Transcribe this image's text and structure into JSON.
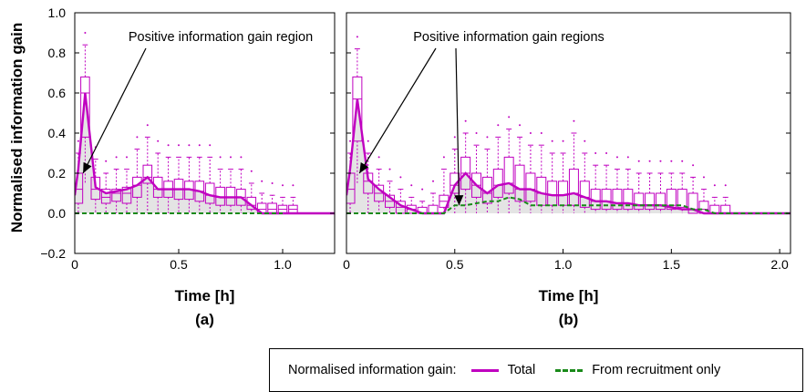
{
  "ylabel": "Normalised information gain",
  "legend": {
    "title": "Normalised information gain:",
    "items": [
      {
        "label": "Total",
        "color": "#c000c0",
        "style": "solid"
      },
      {
        "label": "From recruitment only",
        "color": "#1a8a1a",
        "style": "dashed"
      }
    ]
  },
  "chart_data": [
    {
      "type": "line",
      "panel_label": "(a)",
      "xlabel": "Time [h]",
      "ylabel": "Normalised information gain",
      "xlim": [
        0,
        1.25
      ],
      "ylim": [
        -0.2,
        1.0
      ],
      "xticks": [
        0,
        0.5,
        1.0
      ],
      "xtick_labels": [
        "0",
        "0.5",
        "1.0"
      ],
      "yticks": [
        -0.2,
        0,
        0.2,
        0.4,
        0.6,
        0.8,
        1.0
      ],
      "ytick_labels": [
        "−0.2",
        "0.0",
        "0.2",
        "0.4",
        "0.6",
        "0.8",
        "1.0"
      ],
      "annotations": [
        {
          "text": "Positive information gain region",
          "arrows_to": [
            [
              0.04,
              0.2
            ]
          ]
        }
      ],
      "series": [
        {
          "name": "Total",
          "color": "#c000c0",
          "x": [
            0,
            0.0167,
            0.05,
            0.1,
            0.15,
            0.2,
            0.25,
            0.3,
            0.35,
            0.4,
            0.45,
            0.5,
            0.55,
            0.6,
            0.65,
            0.7,
            0.75,
            0.8,
            0.85,
            0.9,
            1.25
          ],
          "values": [
            0.09,
            0.22,
            0.6,
            0.13,
            0.1,
            0.11,
            0.12,
            0.14,
            0.18,
            0.12,
            0.12,
            0.12,
            0.12,
            0.11,
            0.09,
            0.08,
            0.08,
            0.08,
            0.04,
            0.0,
            0.0
          ]
        },
        {
          "name": "From recruitment only",
          "color": "#1a8a1a",
          "x": [
            0,
            1.0
          ],
          "values": [
            0.0,
            0.0
          ]
        }
      ],
      "boxes": [
        {
          "x": 0.017,
          "q1": 0.05,
          "q3": 0.2,
          "med": 0.12,
          "wlo": 0.0,
          "whi": 0.3
        },
        {
          "x": 0.05,
          "q1": 0.38,
          "q3": 0.68,
          "med": 0.6,
          "wlo": 0.15,
          "whi": 0.84
        },
        {
          "x": 0.1,
          "q1": 0.07,
          "q3": 0.18,
          "med": 0.12,
          "wlo": 0.0,
          "whi": 0.27
        },
        {
          "x": 0.15,
          "q1": 0.05,
          "q3": 0.12,
          "med": 0.08,
          "wlo": 0.0,
          "whi": 0.2
        },
        {
          "x": 0.2,
          "q1": 0.06,
          "q3": 0.12,
          "med": 0.1,
          "wlo": 0.0,
          "whi": 0.22
        },
        {
          "x": 0.25,
          "q1": 0.05,
          "q3": 0.13,
          "med": 0.1,
          "wlo": 0.0,
          "whi": 0.22
        },
        {
          "x": 0.3,
          "q1": 0.08,
          "q3": 0.18,
          "med": 0.14,
          "wlo": 0.0,
          "whi": 0.32
        },
        {
          "x": 0.35,
          "q1": 0.15,
          "q3": 0.24,
          "med": 0.18,
          "wlo": 0.0,
          "whi": 0.38
        },
        {
          "x": 0.4,
          "q1": 0.08,
          "q3": 0.18,
          "med": 0.12,
          "wlo": 0.0,
          "whi": 0.3
        },
        {
          "x": 0.45,
          "q1": 0.08,
          "q3": 0.16,
          "med": 0.12,
          "wlo": 0.0,
          "whi": 0.28
        },
        {
          "x": 0.5,
          "q1": 0.07,
          "q3": 0.17,
          "med": 0.12,
          "wlo": 0.0,
          "whi": 0.28
        },
        {
          "x": 0.55,
          "q1": 0.07,
          "q3": 0.16,
          "med": 0.12,
          "wlo": 0.0,
          "whi": 0.28
        },
        {
          "x": 0.6,
          "q1": 0.06,
          "q3": 0.16,
          "med": 0.11,
          "wlo": 0.0,
          "whi": 0.28
        },
        {
          "x": 0.65,
          "q1": 0.05,
          "q3": 0.15,
          "med": 0.09,
          "wlo": 0.0,
          "whi": 0.28
        },
        {
          "x": 0.7,
          "q1": 0.04,
          "q3": 0.13,
          "med": 0.08,
          "wlo": 0.0,
          "whi": 0.22
        },
        {
          "x": 0.75,
          "q1": 0.04,
          "q3": 0.13,
          "med": 0.08,
          "wlo": 0.0,
          "whi": 0.22
        },
        {
          "x": 0.8,
          "q1": 0.04,
          "q3": 0.12,
          "med": 0.08,
          "wlo": 0.0,
          "whi": 0.22
        },
        {
          "x": 0.85,
          "q1": 0.02,
          "q3": 0.08,
          "med": 0.04,
          "wlo": 0.0,
          "whi": 0.15
        },
        {
          "x": 0.9,
          "q1": 0.0,
          "q3": 0.05,
          "med": 0.02,
          "wlo": 0.0,
          "whi": 0.1
        },
        {
          "x": 0.95,
          "q1": 0.0,
          "q3": 0.05,
          "med": 0.02,
          "wlo": 0.0,
          "whi": 0.09
        },
        {
          "x": 1.0,
          "q1": 0.0,
          "q3": 0.04,
          "med": 0.02,
          "wlo": 0.0,
          "whi": 0.08
        },
        {
          "x": 1.05,
          "q1": 0.0,
          "q3": 0.04,
          "med": 0.02,
          "wlo": 0.0,
          "whi": 0.08
        }
      ]
    },
    {
      "type": "line",
      "panel_label": "(b)",
      "xlabel": "Time [h]",
      "ylabel": "",
      "xlim": [
        0,
        2.05
      ],
      "ylim": [
        -0.2,
        1.0
      ],
      "xticks": [
        0,
        0.5,
        1.0,
        1.5,
        2.0
      ],
      "xtick_labels": [
        "0",
        "0.5",
        "1.0",
        "1.5",
        "2.0"
      ],
      "yticks": [
        -0.2,
        0,
        0.2,
        0.4,
        0.6,
        0.8,
        1.0
      ],
      "annotations": [
        {
          "text": "Positive information gain regions",
          "arrows_to": [
            [
              0.06,
              0.2
            ],
            [
              0.52,
              0.04
            ]
          ]
        }
      ],
      "series": [
        {
          "name": "Total",
          "color": "#c000c0",
          "x": [
            0,
            0.0167,
            0.05,
            0.1,
            0.15,
            0.2,
            0.25,
            0.3,
            0.35,
            0.4,
            0.45,
            0.5,
            0.55,
            0.6,
            0.65,
            0.7,
            0.75,
            0.8,
            0.85,
            0.9,
            0.95,
            1.0,
            1.05,
            1.1,
            1.15,
            1.2,
            1.25,
            1.3,
            1.35,
            1.4,
            1.45,
            1.5,
            1.55,
            1.6,
            1.65,
            1.7,
            2.05
          ],
          "values": [
            0.09,
            0.22,
            0.57,
            0.17,
            0.12,
            0.08,
            0.04,
            0.02,
            0.0,
            0.0,
            0.0,
            0.14,
            0.2,
            0.14,
            0.1,
            0.14,
            0.15,
            0.12,
            0.12,
            0.1,
            0.09,
            0.09,
            0.1,
            0.08,
            0.06,
            0.06,
            0.05,
            0.05,
            0.04,
            0.04,
            0.04,
            0.03,
            0.02,
            0.02,
            0.0,
            0.0,
            0.0
          ]
        },
        {
          "name": "From recruitment only",
          "color": "#1a8a1a",
          "x": [
            0,
            0.45,
            0.5,
            0.55,
            0.6,
            0.65,
            0.7,
            0.75,
            0.8,
            0.85,
            0.9,
            0.95,
            1.0,
            1.05,
            1.1,
            1.15,
            1.2,
            1.25,
            1.3,
            1.35,
            1.4,
            1.45,
            1.5,
            1.55,
            1.6,
            1.65,
            1.7,
            2.05
          ],
          "values": [
            0.0,
            0.0,
            0.04,
            0.04,
            0.05,
            0.06,
            0.06,
            0.08,
            0.07,
            0.04,
            0.04,
            0.04,
            0.04,
            0.04,
            0.04,
            0.04,
            0.04,
            0.04,
            0.04,
            0.04,
            0.04,
            0.04,
            0.04,
            0.04,
            0.02,
            0.02,
            0.0,
            0.0
          ]
        }
      ],
      "boxes": [
        {
          "x": 0.017,
          "q1": 0.05,
          "q3": 0.2,
          "med": 0.12,
          "wlo": 0.0,
          "whi": 0.3
        },
        {
          "x": 0.05,
          "q1": 0.36,
          "q3": 0.68,
          "med": 0.57,
          "wlo": 0.15,
          "whi": 0.82
        },
        {
          "x": 0.1,
          "q1": 0.1,
          "q3": 0.2,
          "med": 0.16,
          "wlo": 0.0,
          "whi": 0.3
        },
        {
          "x": 0.15,
          "q1": 0.06,
          "q3": 0.14,
          "med": 0.1,
          "wlo": 0.0,
          "whi": 0.22
        },
        {
          "x": 0.2,
          "q1": 0.03,
          "q3": 0.09,
          "med": 0.06,
          "wlo": 0.0,
          "whi": 0.16
        },
        {
          "x": 0.25,
          "q1": 0.0,
          "q3": 0.06,
          "med": 0.03,
          "wlo": 0.0,
          "whi": 0.12
        },
        {
          "x": 0.3,
          "q1": 0.0,
          "q3": 0.04,
          "med": 0.02,
          "wlo": 0.0,
          "whi": 0.08
        },
        {
          "x": 0.35,
          "q1": 0.0,
          "q3": 0.03,
          "med": 0.0,
          "wlo": 0.0,
          "whi": 0.06
        },
        {
          "x": 0.4,
          "q1": 0.0,
          "q3": 0.04,
          "med": 0.0,
          "wlo": 0.0,
          "whi": 0.1
        },
        {
          "x": 0.45,
          "q1": 0.03,
          "q3": 0.09,
          "med": 0.06,
          "wlo": 0.0,
          "whi": 0.22
        },
        {
          "x": 0.5,
          "q1": 0.1,
          "q3": 0.2,
          "med": 0.14,
          "wlo": 0.0,
          "whi": 0.32
        },
        {
          "x": 0.55,
          "q1": 0.12,
          "q3": 0.28,
          "med": 0.2,
          "wlo": 0.0,
          "whi": 0.4
        },
        {
          "x": 0.6,
          "q1": 0.08,
          "q3": 0.2,
          "med": 0.14,
          "wlo": 0.0,
          "whi": 0.34
        },
        {
          "x": 0.65,
          "q1": 0.05,
          "q3": 0.18,
          "med": 0.1,
          "wlo": 0.0,
          "whi": 0.32
        },
        {
          "x": 0.7,
          "q1": 0.08,
          "q3": 0.22,
          "med": 0.14,
          "wlo": 0.0,
          "whi": 0.38
        },
        {
          "x": 0.75,
          "q1": 0.1,
          "q3": 0.28,
          "med": 0.15,
          "wlo": 0.0,
          "whi": 0.42
        },
        {
          "x": 0.8,
          "q1": 0.06,
          "q3": 0.24,
          "med": 0.12,
          "wlo": 0.0,
          "whi": 0.38
        },
        {
          "x": 0.85,
          "q1": 0.06,
          "q3": 0.2,
          "med": 0.12,
          "wlo": 0.0,
          "whi": 0.34
        },
        {
          "x": 0.9,
          "q1": 0.04,
          "q3": 0.18,
          "med": 0.1,
          "wlo": 0.0,
          "whi": 0.34
        },
        {
          "x": 0.95,
          "q1": 0.04,
          "q3": 0.16,
          "med": 0.09,
          "wlo": 0.0,
          "whi": 0.3
        },
        {
          "x": 1.0,
          "q1": 0.04,
          "q3": 0.16,
          "med": 0.09,
          "wlo": 0.0,
          "whi": 0.3
        },
        {
          "x": 1.05,
          "q1": 0.04,
          "q3": 0.22,
          "med": 0.1,
          "wlo": 0.0,
          "whi": 0.4
        },
        {
          "x": 1.1,
          "q1": 0.03,
          "q3": 0.16,
          "med": 0.08,
          "wlo": 0.0,
          "whi": 0.3
        },
        {
          "x": 1.15,
          "q1": 0.02,
          "q3": 0.12,
          "med": 0.06,
          "wlo": 0.0,
          "whi": 0.24
        },
        {
          "x": 1.2,
          "q1": 0.02,
          "q3": 0.12,
          "med": 0.06,
          "wlo": 0.0,
          "whi": 0.24
        },
        {
          "x": 1.25,
          "q1": 0.02,
          "q3": 0.12,
          "med": 0.05,
          "wlo": 0.0,
          "whi": 0.22
        },
        {
          "x": 1.3,
          "q1": 0.02,
          "q3": 0.12,
          "med": 0.05,
          "wlo": 0.0,
          "whi": 0.22
        },
        {
          "x": 1.35,
          "q1": 0.02,
          "q3": 0.1,
          "med": 0.04,
          "wlo": 0.0,
          "whi": 0.2
        },
        {
          "x": 1.4,
          "q1": 0.02,
          "q3": 0.1,
          "med": 0.04,
          "wlo": 0.0,
          "whi": 0.2
        },
        {
          "x": 1.45,
          "q1": 0.02,
          "q3": 0.1,
          "med": 0.04,
          "wlo": 0.0,
          "whi": 0.2
        },
        {
          "x": 1.5,
          "q1": 0.02,
          "q3": 0.12,
          "med": 0.04,
          "wlo": 0.0,
          "whi": 0.2
        },
        {
          "x": 1.55,
          "q1": 0.02,
          "q3": 0.12,
          "med": 0.03,
          "wlo": 0.0,
          "whi": 0.2
        },
        {
          "x": 1.6,
          "q1": 0.0,
          "q3": 0.1,
          "med": 0.02,
          "wlo": 0.0,
          "whi": 0.18
        },
        {
          "x": 1.65,
          "q1": 0.0,
          "q3": 0.06,
          "med": 0.02,
          "wlo": 0.0,
          "whi": 0.12
        },
        {
          "x": 1.7,
          "q1": 0.0,
          "q3": 0.04,
          "med": 0.0,
          "wlo": 0.0,
          "whi": 0.08
        },
        {
          "x": 1.75,
          "q1": 0.0,
          "q3": 0.04,
          "med": 0.0,
          "wlo": 0.0,
          "whi": 0.08
        }
      ]
    }
  ]
}
